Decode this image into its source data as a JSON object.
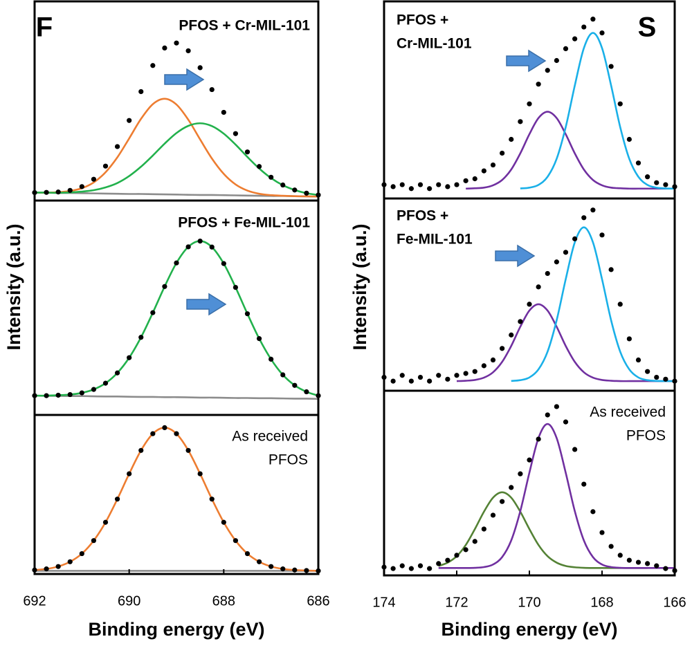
{
  "chart_data": [
    {
      "type": "line",
      "panel_label": "F",
      "annotation": [
        "PFOS + Cr-MIL-101"
      ],
      "x": [
        692,
        691.75,
        691.5,
        691.25,
        691,
        690.75,
        690.5,
        690.25,
        690,
        689.75,
        689.5,
        689.25,
        689,
        688.75,
        688.5,
        688.25,
        688,
        687.75,
        687.5,
        687.25,
        687,
        686.75,
        686.5,
        686.25,
        686
      ],
      "xlim": [
        692,
        686
      ],
      "ylim": [
        0,
        100
      ],
      "series": [
        {
          "style": "line",
          "color": "#8c8c8c",
          "values": [
            4.0,
            3.9,
            3.8,
            3.8,
            3.7,
            3.6,
            3.5,
            3.4,
            3.3,
            3.3,
            3.2,
            3.1,
            3.0,
            2.9,
            2.8,
            2.8,
            2.7,
            2.6,
            2.5,
            2.4,
            2.3,
            2.3,
            2.2,
            2.1,
            2.0
          ]
        },
        {
          "style": "line",
          "color": "#ed7d31",
          "values": [
            4.0,
            4.0,
            4.2,
            4.8,
            6.2,
            9.1,
            14.2,
            21.7,
            31.2,
            41.0,
            48.4,
            51.1,
            48.2,
            40.6,
            30.7,
            21.1,
            13.4,
            8.1,
            5.0,
            3.4,
            2.7,
            2.4,
            2.2,
            2.1,
            2.0
          ]
        },
        {
          "style": "line",
          "color": "#22b14c",
          "values": [
            4.0,
            4.0,
            3.9,
            4.1,
            4.5,
            5.2,
            6.6,
            8.8,
            12.3,
            17.0,
            22.6,
            28.6,
            33.9,
            37.5,
            38.8,
            37.4,
            33.6,
            28.1,
            21.9,
            16.1,
            11.3,
            7.7,
            5.3,
            3.7,
            2.8
          ]
        },
        {
          "style": "markers",
          "color": "#000000",
          "values": [
            4.0,
            4.1,
            4.3,
            5.1,
            7.0,
            10.7,
            17.3,
            27.1,
            40.2,
            54.7,
            67.8,
            76.6,
            79.1,
            75.2,
            66.7,
            55.7,
            44.3,
            33.6,
            24.4,
            17.1,
            11.7,
            7.8,
            5.3,
            3.7,
            2.8
          ]
        }
      ]
    },
    {
      "type": "line",
      "annotation": [
        "PFOS + Fe-MIL-101"
      ],
      "ylabel": "Intensity (a.u.)",
      "x": [
        692,
        691.75,
        691.5,
        691.25,
        691,
        690.75,
        690.5,
        690.25,
        690,
        689.75,
        689.5,
        689.25,
        689,
        688.75,
        688.5,
        688.25,
        688,
        687.75,
        687.5,
        687.25,
        687,
        686.75,
        686.5,
        686.25,
        686
      ],
      "xlim": [
        692,
        686
      ],
      "ylim": [
        0,
        100
      ],
      "series": [
        {
          "style": "line",
          "color": "#8c8c8c",
          "values": [
            9.0,
            8.9,
            8.9,
            8.8,
            8.8,
            8.7,
            8.6,
            8.6,
            8.5,
            8.4,
            8.4,
            8.3,
            8.3,
            8.2,
            8.1,
            8.1,
            8.0,
            7.9,
            7.9,
            7.8,
            7.8,
            7.7,
            7.6,
            7.6,
            7.5
          ]
        },
        {
          "style": "line",
          "color": "#22b14c",
          "values": [
            9.0,
            9.0,
            9.2,
            9.5,
            10.3,
            11.9,
            14.8,
            19.6,
            26.7,
            36.2,
            47.7,
            59.9,
            70.9,
            78.4,
            81.1,
            78.3,
            70.6,
            59.5,
            47.2,
            35.6,
            26.0,
            18.7,
            13.8,
            10.8,
            9.0
          ]
        },
        {
          "style": "markers",
          "color": "#000000",
          "values": [
            9.0,
            9.0,
            9.2,
            9.5,
            10.3,
            11.9,
            14.8,
            19.6,
            26.7,
            36.2,
            47.7,
            59.9,
            70.9,
            78.4,
            81.1,
            78.3,
            70.6,
            59.5,
            47.2,
            35.6,
            26.0,
            18.7,
            13.8,
            10.8,
            9.0
          ]
        }
      ]
    },
    {
      "type": "line",
      "annotation": [
        "As received",
        "PFOS"
      ],
      "xlabel": "Binding energy (eV)",
      "x": [
        692,
        691.75,
        691.5,
        691.25,
        691,
        690.75,
        690.5,
        690.25,
        690,
        689.75,
        689.5,
        689.25,
        689,
        688.75,
        688.5,
        688.25,
        688,
        687.75,
        687.5,
        687.25,
        687,
        686.75,
        686.5,
        686.25,
        686
      ],
      "xlim": [
        692,
        686
      ],
      "xticks": [
        692,
        690,
        688,
        686
      ],
      "ylim": [
        0,
        100
      ],
      "series": [
        {
          "style": "line",
          "color": "#8c8c8c",
          "values": [
            2,
            2,
            2,
            2,
            2,
            2,
            2,
            2,
            2,
            2,
            2,
            2,
            2,
            2,
            2,
            2,
            2,
            2,
            2,
            2,
            2,
            2,
            2,
            2,
            2
          ]
        },
        {
          "style": "line",
          "color": "#ed7d31",
          "values": [
            2.5,
            3.2,
            4.7,
            7.7,
            12.8,
            21.0,
            32.5,
            47.1,
            63.0,
            77.7,
            88.2,
            92.0,
            88.2,
            77.7,
            63.0,
            47.1,
            32.5,
            21.0,
            12.8,
            7.7,
            4.7,
            3.2,
            2.5,
            2.2,
            2.0
          ]
        },
        {
          "style": "markers",
          "color": "#000000",
          "values": [
            2.5,
            3.2,
            4.7,
            7.7,
            12.8,
            21.0,
            32.5,
            47.1,
            63.0,
            77.7,
            88.2,
            92.0,
            88.2,
            77.7,
            63.0,
            47.1,
            32.5,
            21.0,
            12.8,
            7.7,
            4.7,
            3.2,
            2.5,
            2.2,
            2.0
          ]
        }
      ]
    },
    {
      "type": "line",
      "panel_label": "S",
      "annotation": [
        "PFOS +",
        "Cr-MIL-101"
      ],
      "x": [
        174,
        173.75,
        173.5,
        173.25,
        173,
        172.75,
        172.5,
        172.25,
        172,
        171.75,
        171.5,
        171.25,
        171,
        170.75,
        170.5,
        170.25,
        170,
        169.75,
        169.5,
        169.25,
        169,
        168.75,
        168.5,
        168.25,
        168,
        167.75,
        167.5,
        167.25,
        167,
        166.75,
        166.5,
        166.25,
        166
      ],
      "xlim": [
        174,
        166
      ],
      "ylim": [
        0,
        100
      ],
      "series": [
        {
          "style": "line",
          "color": "#7030a0",
          "values": [
            null,
            null,
            null,
            null,
            null,
            null,
            null,
            null,
            null,
            5.0,
            5.2,
            5.5,
            6.7,
            9.4,
            14.7,
            22.9,
            32.6,
            40.8,
            44.0,
            40.8,
            32.6,
            22.9,
            14.7,
            9.4,
            6.7,
            5.5,
            5.2,
            5.0,
            5.0,
            5.0,
            5.0,
            5.0,
            5.0
          ]
        },
        {
          "style": "line",
          "color": "#1ab0e8",
          "values": [
            null,
            null,
            null,
            null,
            null,
            null,
            null,
            null,
            null,
            null,
            null,
            null,
            null,
            null,
            null,
            5.1,
            5.5,
            6.9,
            11.0,
            20.1,
            36.2,
            57.3,
            76.3,
            84.0,
            76.3,
            57.3,
            36.2,
            20.1,
            11.0,
            6.9,
            5.5,
            5.1,
            5.0
          ]
        },
        {
          "style": "markers",
          "color": "#000000",
          "values": [
            7,
            6,
            7,
            5,
            7,
            5,
            7,
            6,
            7,
            9,
            10,
            14,
            17,
            23,
            30,
            39,
            48,
            58,
            65,
            70,
            76,
            81,
            87,
            91,
            84,
            67,
            48,
            30,
            18,
            11,
            8,
            7,
            6
          ]
        }
      ]
    },
    {
      "type": "line",
      "annotation": [
        "PFOS +",
        "Fe-MIL-101"
      ],
      "ylabel": "Intensity (a.u.)",
      "x": [
        174,
        173.75,
        173.5,
        173.25,
        173,
        172.75,
        172.5,
        172.25,
        172,
        171.75,
        171.5,
        171.25,
        171,
        170.75,
        170.5,
        170.25,
        170,
        169.75,
        169.5,
        169.25,
        169,
        168.75,
        168.5,
        168.25,
        168,
        167.75,
        167.5,
        167.25,
        167,
        166.75,
        166.5,
        166.25,
        166
      ],
      "xlim": [
        174,
        166
      ],
      "ylim": [
        0,
        100
      ],
      "series": [
        {
          "style": "line",
          "color": "#7030a0",
          "values": [
            null,
            null,
            null,
            null,
            null,
            null,
            null,
            null,
            5.0,
            5.2,
            5.6,
            6.8,
            9.6,
            15.0,
            23.3,
            33.3,
            41.7,
            45.0,
            41.7,
            33.3,
            23.3,
            15.0,
            9.6,
            6.8,
            5.6,
            5.2,
            5.0,
            5.0,
            5.0,
            5.0,
            5.0,
            5.0,
            5.0
          ]
        },
        {
          "style": "line",
          "color": "#1ab0e8",
          "values": [
            null,
            null,
            null,
            null,
            null,
            null,
            null,
            null,
            null,
            null,
            null,
            null,
            null,
            null,
            5.1,
            5.5,
            6.9,
            11.1,
            20.3,
            36.6,
            58.0,
            77.2,
            85.0,
            77.2,
            58.0,
            36.6,
            20.3,
            11.1,
            6.9,
            5.5,
            5.1,
            5.0,
            5.0
          ]
        },
        {
          "style": "markers",
          "color": "#000000",
          "values": [
            7,
            5,
            8,
            5,
            7,
            5,
            8,
            6,
            8,
            9,
            10,
            13,
            16,
            22,
            29,
            36,
            45,
            54,
            61,
            67,
            72,
            79,
            90,
            94,
            81,
            63,
            45,
            27,
            16,
            10,
            7,
            6,
            5
          ]
        }
      ]
    },
    {
      "type": "line",
      "annotation": [
        "As received",
        "PFOS"
      ],
      "xlabel": "Binding energy (eV)",
      "x": [
        174,
        173.75,
        173.5,
        173.25,
        173,
        172.75,
        172.5,
        172.25,
        172,
        171.75,
        171.5,
        171.25,
        171,
        170.75,
        170.5,
        170.25,
        170,
        169.75,
        169.5,
        169.25,
        169,
        168.75,
        168.5,
        168.25,
        168,
        167.75,
        167.5,
        167.25,
        167,
        166.75,
        166.5,
        166.25,
        166
      ],
      "xlim": [
        174,
        166
      ],
      "xticks": [
        174,
        172,
        170,
        168,
        166
      ],
      "ylim": [
        0,
        100
      ],
      "series": [
        {
          "style": "line",
          "color": "#548235",
          "values": [
            null,
            null,
            null,
            null,
            null,
            null,
            5.1,
            6.9,
            10.4,
            16.5,
            25.1,
            34.5,
            42.1,
            45.0,
            42.1,
            34.5,
            25.1,
            16.5,
            10.4,
            6.9,
            5.1,
            4.4,
            4.1,
            4.0,
            4.0,
            4.0,
            4.0,
            4.0,
            4.0,
            4.0,
            null,
            null,
            null
          ]
        },
        {
          "style": "line",
          "color": "#7030a0",
          "values": [
            null,
            null,
            null,
            null,
            null,
            null,
            4.0,
            4.0,
            4.0,
            4.0,
            4.1,
            4.5,
            5.9,
            9.9,
            18.9,
            34.8,
            55.6,
            74.4,
            82.0,
            74.4,
            55.6,
            34.8,
            18.9,
            9.9,
            5.9,
            4.5,
            4.1,
            4.0,
            4.0,
            4.0,
            4.0,
            4.0,
            4.0
          ]
        },
        {
          "style": "markers",
          "color": "#000000",
          "values": [
            4.5,
            3.7,
            5.2,
            3.7,
            5.2,
            3.7,
            6.4,
            8.2,
            10.9,
            13.9,
            18.4,
            25.1,
            32.6,
            40,
            47.6,
            55,
            62.5,
            73.8,
            86.9,
            91.4,
            83.1,
            68.2,
            49.4,
            34.5,
            23.2,
            15.7,
            10.9,
            8.2,
            7.1,
            6.4,
            5.2,
            3.7,
            2.6
          ]
        }
      ]
    }
  ]
}
